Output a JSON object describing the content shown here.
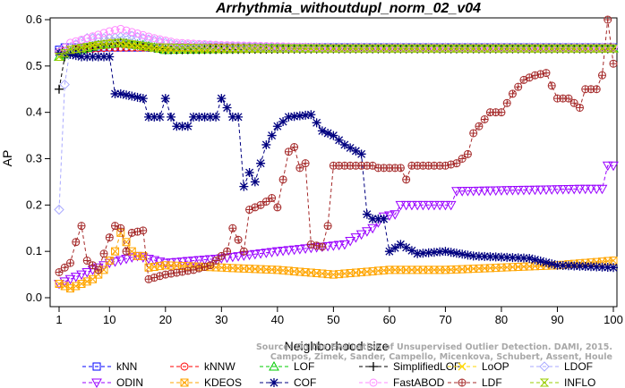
{
  "chart_data": {
    "type": "line",
    "title": "Arrhythmia_withoutdupl_norm_02_v04",
    "xlabel": "Neighborhood size",
    "ylabel": "AP",
    "xlim": [
      1,
      100
    ],
    "ylim": [
      0,
      0.6
    ],
    "xticks": [
      1,
      10,
      20,
      30,
      40,
      50,
      60,
      70,
      80,
      90,
      100
    ],
    "yticks": [
      0.0,
      0.1,
      0.2,
      0.3,
      0.4,
      0.5,
      0.6
    ],
    "xtick_labels": [
      "1",
      "10",
      "20",
      "30",
      "40",
      "50",
      "60",
      "70",
      "80",
      "90",
      "100"
    ],
    "ytick_labels": [
      "0.0",
      "0.1",
      "0.2",
      "0.3",
      "0.4",
      "0.5",
      "0.6"
    ],
    "grid": false,
    "legend_position": "bottom",
    "watermark": [
      "Source: On the Evaluation of Unsupervised Outlier Detection. DAMI, 2015.",
      "Campos, Zimek, Sander, Campello, Micenkova, Schubert, Assent, Houle"
    ],
    "series": [
      {
        "name": "kNN",
        "color": "#0000ff",
        "marker": "square",
        "knots": [
          [
            1,
            0.535
          ],
          [
            2,
            0.54
          ],
          [
            5,
            0.54
          ],
          [
            20,
            0.54
          ],
          [
            50,
            0.54
          ],
          [
            100,
            0.54
          ]
        ]
      },
      {
        "name": "kNNW",
        "color": "#ff0000",
        "marker": "circle",
        "knots": [
          [
            1,
            0.53
          ],
          [
            3,
            0.535
          ],
          [
            10,
            0.54
          ],
          [
            40,
            0.54
          ],
          [
            100,
            0.54
          ]
        ]
      },
      {
        "name": "LOF",
        "color": "#00cc00",
        "marker": "triangle-up",
        "knots": [
          [
            1,
            0.52
          ],
          [
            3,
            0.53
          ],
          [
            8,
            0.545
          ],
          [
            12,
            0.55
          ],
          [
            16,
            0.545
          ],
          [
            20,
            0.535
          ],
          [
            40,
            0.538
          ],
          [
            70,
            0.538
          ],
          [
            100,
            0.538
          ]
        ]
      },
      {
        "name": "SimplifiedLOF",
        "color": "#000000",
        "marker": "plus",
        "knots": [
          [
            1,
            0.45
          ],
          [
            2,
            0.52
          ],
          [
            4,
            0.535
          ],
          [
            8,
            0.545
          ],
          [
            12,
            0.55
          ],
          [
            15,
            0.545
          ],
          [
            20,
            0.535
          ],
          [
            50,
            0.537
          ],
          [
            100,
            0.537
          ]
        ]
      },
      {
        "name": "LoOP",
        "color": "#ffd700",
        "marker": "cross",
        "knots": [
          [
            1,
            0.52
          ],
          [
            3,
            0.535
          ],
          [
            7,
            0.545
          ],
          [
            10,
            0.555
          ],
          [
            13,
            0.545
          ],
          [
            20,
            0.535
          ],
          [
            50,
            0.537
          ],
          [
            100,
            0.537
          ]
        ]
      },
      {
        "name": "LDOF",
        "color": "#aaaaff",
        "marker": "diamond",
        "knots": [
          [
            1,
            0.19
          ],
          [
            2,
            0.46
          ],
          [
            3,
            0.54
          ],
          [
            6,
            0.56
          ],
          [
            10,
            0.56
          ],
          [
            14,
            0.565
          ],
          [
            18,
            0.555
          ],
          [
            22,
            0.545
          ],
          [
            40,
            0.54
          ],
          [
            100,
            0.54
          ]
        ]
      },
      {
        "name": "ODIN",
        "color": "#9900ff",
        "marker": "triangle-down",
        "knots": [
          [
            1,
            0.03
          ],
          [
            3,
            0.04
          ],
          [
            6,
            0.055
          ],
          [
            10,
            0.075
          ],
          [
            15,
            0.09
          ],
          [
            20,
            0.075
          ],
          [
            25,
            0.08
          ],
          [
            30,
            0.085
          ],
          [
            40,
            0.1
          ],
          [
            48,
            0.11
          ],
          [
            52,
            0.115
          ],
          [
            54,
            0.13
          ],
          [
            57,
            0.15
          ],
          [
            59,
            0.175
          ],
          [
            61,
            0.18
          ],
          [
            62,
            0.2
          ],
          [
            71,
            0.2
          ],
          [
            72,
            0.23
          ],
          [
            95,
            0.235
          ],
          [
            98,
            0.235
          ],
          [
            99,
            0.285
          ],
          [
            100,
            0.285
          ]
        ]
      },
      {
        "name": "KDEOS",
        "color": "#ffa500",
        "marker": "square-x",
        "knots": [
          [
            1,
            0.03
          ],
          [
            3,
            0.02
          ],
          [
            7,
            0.04
          ],
          [
            9,
            0.06
          ],
          [
            11,
            0.1
          ],
          [
            12,
            0.14
          ],
          [
            13,
            0.12
          ],
          [
            14,
            0.1
          ],
          [
            15,
            0.09
          ],
          [
            16,
            0.09
          ],
          [
            17,
            0.065
          ],
          [
            20,
            0.07
          ],
          [
            30,
            0.065
          ],
          [
            40,
            0.06
          ],
          [
            50,
            0.05
          ],
          [
            60,
            0.06
          ],
          [
            70,
            0.06
          ],
          [
            80,
            0.065
          ],
          [
            90,
            0.07
          ],
          [
            100,
            0.08
          ]
        ]
      },
      {
        "name": "COF",
        "color": "#000080",
        "marker": "asterisk",
        "knots": [
          [
            1,
            0.53
          ],
          [
            5,
            0.52
          ],
          [
            10,
            0.52
          ],
          [
            11,
            0.44
          ],
          [
            12,
            0.44
          ],
          [
            16,
            0.43
          ],
          [
            17,
            0.39
          ],
          [
            19,
            0.39
          ],
          [
            20,
            0.43
          ],
          [
            21,
            0.39
          ],
          [
            22,
            0.37
          ],
          [
            24,
            0.37
          ],
          [
            25,
            0.39
          ],
          [
            29,
            0.39
          ],
          [
            30,
            0.43
          ],
          [
            32,
            0.39
          ],
          [
            33,
            0.39
          ],
          [
            34,
            0.24
          ],
          [
            35,
            0.27
          ],
          [
            36,
            0.25
          ],
          [
            38,
            0.33
          ],
          [
            40,
            0.37
          ],
          [
            42,
            0.39
          ],
          [
            46,
            0.395
          ],
          [
            48,
            0.36
          ],
          [
            50,
            0.35
          ],
          [
            52,
            0.33
          ],
          [
            55,
            0.31
          ],
          [
            56,
            0.18
          ],
          [
            57,
            0.17
          ],
          [
            59,
            0.17
          ],
          [
            60,
            0.1
          ],
          [
            62,
            0.115
          ],
          [
            65,
            0.095
          ],
          [
            70,
            0.1
          ],
          [
            75,
            0.09
          ],
          [
            85,
            0.085
          ],
          [
            90,
            0.07
          ],
          [
            100,
            0.065
          ]
        ]
      },
      {
        "name": "FastABOD",
        "color": "#ff88ff",
        "marker": "circle",
        "knots": [
          [
            1,
            0.53
          ],
          [
            3,
            0.55
          ],
          [
            6,
            0.56
          ],
          [
            10,
            0.575
          ],
          [
            12,
            0.58
          ],
          [
            15,
            0.57
          ],
          [
            18,
            0.56
          ],
          [
            22,
            0.55
          ],
          [
            30,
            0.545
          ],
          [
            50,
            0.54
          ],
          [
            100,
            0.54
          ]
        ]
      },
      {
        "name": "LDF",
        "color": "#a52a2a",
        "marker": "circle-plus",
        "knots": [
          [
            1,
            0.055
          ],
          [
            3,
            0.075
          ],
          [
            4,
            0.12
          ],
          [
            5,
            0.155
          ],
          [
            6,
            0.08
          ],
          [
            8,
            0.06
          ],
          [
            10,
            0.13
          ],
          [
            11,
            0.155
          ],
          [
            12,
            0.15
          ],
          [
            13,
            0.1
          ],
          [
            14,
            0.14
          ],
          [
            16,
            0.145
          ],
          [
            17,
            0.04
          ],
          [
            20,
            0.05
          ],
          [
            25,
            0.06
          ],
          [
            28,
            0.07
          ],
          [
            31,
            0.1
          ],
          [
            32,
            0.15
          ],
          [
            34,
            0.1
          ],
          [
            35,
            0.19
          ],
          [
            37,
            0.2
          ],
          [
            39,
            0.215
          ],
          [
            40,
            0.195
          ],
          [
            41,
            0.255
          ],
          [
            42,
            0.315
          ],
          [
            43,
            0.325
          ],
          [
            44,
            0.28
          ],
          [
            45,
            0.29
          ],
          [
            46,
            0.115
          ],
          [
            48,
            0.11
          ],
          [
            49,
            0.155
          ],
          [
            50,
            0.285
          ],
          [
            57,
            0.285
          ],
          [
            58,
            0.28
          ],
          [
            62,
            0.28
          ],
          [
            63,
            0.255
          ],
          [
            64,
            0.285
          ],
          [
            70,
            0.285
          ],
          [
            72,
            0.29
          ],
          [
            74,
            0.31
          ],
          [
            75,
            0.355
          ],
          [
            76,
            0.37
          ],
          [
            78,
            0.4
          ],
          [
            80,
            0.4
          ],
          [
            82,
            0.44
          ],
          [
            84,
            0.47
          ],
          [
            86,
            0.48
          ],
          [
            88,
            0.485
          ],
          [
            90,
            0.43
          ],
          [
            92,
            0.43
          ],
          [
            94,
            0.41
          ],
          [
            95,
            0.45
          ],
          [
            97,
            0.45
          ],
          [
            98,
            0.48
          ],
          [
            99,
            0.6
          ],
          [
            100,
            0.505
          ]
        ]
      },
      {
        "name": "INFLO",
        "color": "#99cc00",
        "marker": "hourglass",
        "knots": [
          [
            1,
            0.52
          ],
          [
            3,
            0.535
          ],
          [
            8,
            0.545
          ],
          [
            12,
            0.55
          ],
          [
            18,
            0.54
          ],
          [
            30,
            0.538
          ],
          [
            100,
            0.538
          ]
        ]
      }
    ]
  }
}
